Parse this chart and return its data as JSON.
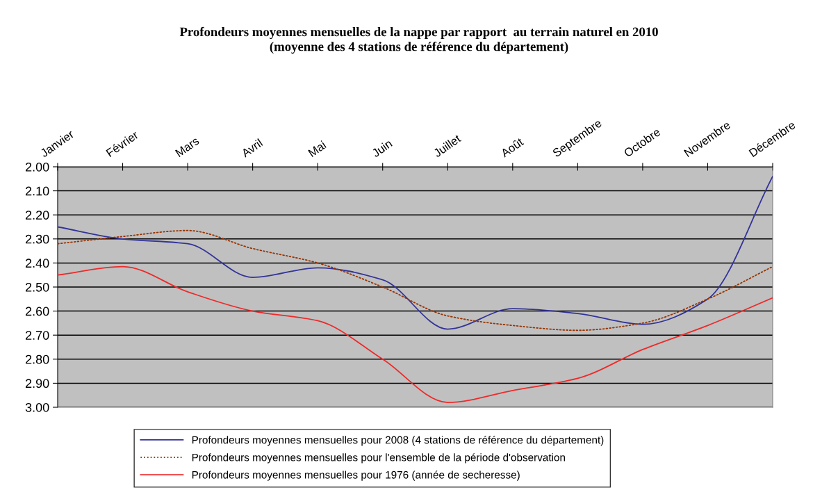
{
  "chart_data": {
    "type": "line",
    "title": "Profondeurs moyennes mensuelles de la nappe par rapport  au terrain naturel en 2010\n(moyenne des 4 stations de référence du département)",
    "categories": [
      "Janvier",
      "Février",
      "Mars",
      "Avril",
      "Mai",
      "Juin",
      "Juillet",
      "Août",
      "Septembre",
      "Octobre",
      "Novembre",
      "Décembre"
    ],
    "series": [
      {
        "name": "Profondeurs moyennes mensuelles pour 2008 (4 stations de référence du département)",
        "color": "#333399",
        "line_style": "solid",
        "values": [
          2.25,
          2.3,
          2.32,
          2.46,
          2.42,
          2.47,
          2.675,
          2.59,
          2.61,
          2.655,
          2.55,
          2.04
        ]
      },
      {
        "name": "Profondeurs moyennes mensuelles pour l'ensemble de la période d'observation",
        "color": "#993300",
        "line_style": "dotted",
        "values": [
          2.32,
          2.29,
          2.265,
          2.34,
          2.4,
          2.5,
          2.62,
          2.66,
          2.68,
          2.65,
          2.55,
          2.415
        ]
      },
      {
        "name": "Profondeurs moyennes mensuelles pour 1976 (année de secheresse)",
        "color": "#ee2a2a",
        "line_style": "solid",
        "values": [
          2.45,
          2.415,
          2.52,
          2.6,
          2.64,
          2.8,
          2.98,
          2.93,
          2.88,
          2.76,
          2.66,
          2.545
        ]
      }
    ],
    "ylim": [
      3.0,
      2.0
    ],
    "yticks": [
      {
        "value": 2.0,
        "label": "2.00"
      },
      {
        "value": 2.1,
        "label": "2.10"
      },
      {
        "value": 2.2,
        "label": "2.20"
      },
      {
        "value": 2.3,
        "label": "2.30"
      },
      {
        "value": 2.4,
        "label": "2.40"
      },
      {
        "value": 2.5,
        "label": "2.50"
      },
      {
        "value": 2.6,
        "label": "2.60"
      },
      {
        "value": 2.7,
        "label": "2.70"
      },
      {
        "value": 2.8,
        "label": "2.80"
      },
      {
        "value": 2.9,
        "label": "2.90"
      },
      {
        "value": 3.0,
        "label": "3.00"
      }
    ],
    "grid": "y",
    "legend": "bottom",
    "marker": "none"
  }
}
